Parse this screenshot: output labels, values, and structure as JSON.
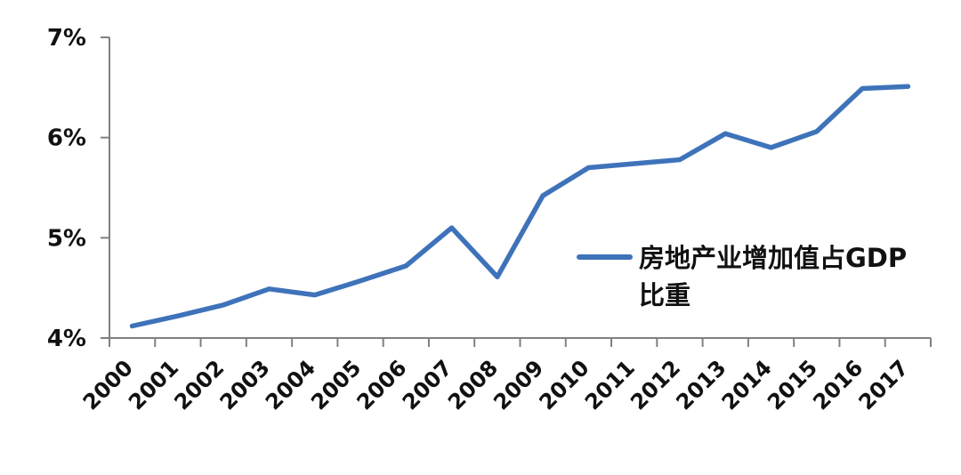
{
  "chart_data": {
    "type": "line",
    "categories": [
      "2000",
      "2001",
      "2002",
      "2003",
      "2004",
      "2005",
      "2006",
      "2007",
      "2008",
      "2009",
      "2010",
      "2011",
      "2012",
      "2013",
      "2014",
      "2015",
      "2016",
      "2017"
    ],
    "series": [
      {
        "name": "房地产业增加值占GDP比重",
        "values": [
          4.12,
          4.22,
          4.33,
          4.49,
          4.43,
          4.57,
          4.72,
          5.1,
          4.61,
          5.42,
          5.7,
          5.74,
          5.78,
          6.04,
          5.9,
          6.06,
          6.49,
          6.51
        ]
      }
    ],
    "xlabel": "",
    "ylabel": "",
    "ylim": [
      4,
      7
    ],
    "yticks": [
      4,
      5,
      6,
      7
    ],
    "ytick_labels": [
      "4%",
      "5%",
      "6%",
      "7%"
    ],
    "grid": false,
    "legend_position": "center-right",
    "legend": {
      "label": "房地产业增加值占GDP比重",
      "lines": [
        "房地产业增加值占GDP",
        "比重"
      ]
    },
    "colors": {
      "line": "#3E73BA",
      "axis": "#808080",
      "text": "#111111",
      "background": "#ffffff"
    }
  }
}
